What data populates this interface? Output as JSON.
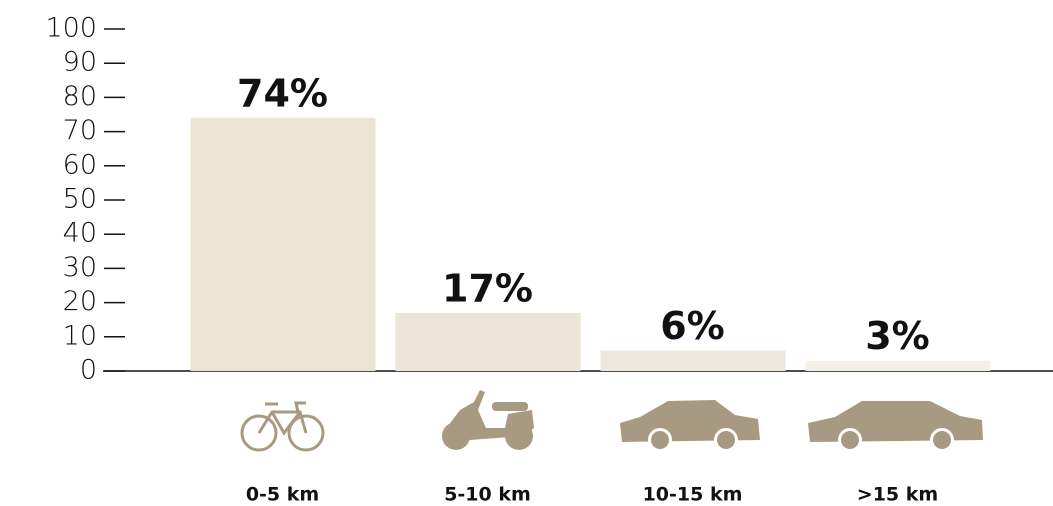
{
  "chart_data": {
    "type": "bar",
    "categories": [
      "0-5 km",
      "5-10 km",
      "10-15 km",
      ">15 km"
    ],
    "values": [
      74,
      17,
      6,
      3
    ],
    "value_labels": [
      "74%",
      "17%",
      "6%",
      "3%"
    ],
    "colors": [
      "#ebe4d5",
      "#ece5d7",
      "#eee8dc",
      "#f3efe6"
    ],
    "ylim": [
      0,
      100
    ],
    "yticks": [
      0,
      10,
      20,
      30,
      40,
      50,
      60,
      70,
      80,
      90,
      100
    ],
    "grid": false
  }
}
